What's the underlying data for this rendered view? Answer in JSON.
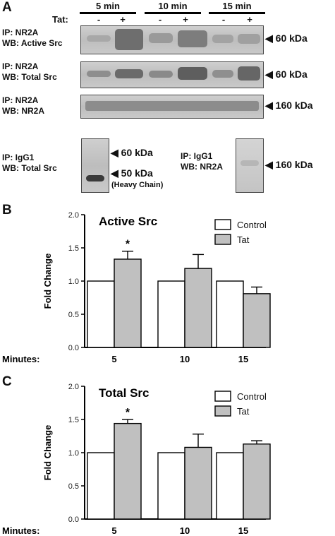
{
  "panel_labels": {
    "a": "A",
    "b": "B",
    "c": "C"
  },
  "blots": {
    "times": [
      "5 min",
      "10 min",
      "15 min"
    ],
    "treatment_label": "Tat:",
    "signs": [
      "-",
      "+",
      "-",
      "+",
      "-",
      "+"
    ],
    "rows": [
      {
        "ip": "IP: NR2A",
        "wb": "WB: Active Src",
        "marker": "60 kDa"
      },
      {
        "ip": "IP: NR2A",
        "wb": "WB: Total Src",
        "marker": "60 kDa"
      },
      {
        "ip": "IP: NR2A",
        "wb": "WB: NR2A",
        "marker": "160 kDa"
      }
    ],
    "igg_left": {
      "ip": "IP: IgG1",
      "wb": "WB: Total Src",
      "marker_top": "60 kDa",
      "marker_bottom": "50 kDa",
      "note": "(Heavy Chain)"
    },
    "igg_right": {
      "ip": "IP: IgG1",
      "wb": "WB: NR2A",
      "marker": "160 kDa"
    }
  },
  "chart_data": [
    {
      "type": "bar",
      "title": "Active Src",
      "xlabel": "Minutes:",
      "ylabel": "Fold Change",
      "categories": [
        "5",
        "10",
        "15"
      ],
      "ylim": [
        0,
        2.0
      ],
      "yticks": [
        "0.0",
        "0.5",
        "1.0",
        "1.5",
        "2.0"
      ],
      "series": [
        {
          "name": "Control",
          "values": [
            1.0,
            1.0,
            1.0
          ],
          "errors": [
            0,
            0,
            0
          ],
          "color": "#ffffff"
        },
        {
          "name": "Tat",
          "values": [
            1.33,
            1.19,
            0.81
          ],
          "errors": [
            0.12,
            0.21,
            0.1
          ],
          "color": "#c0c0c0"
        }
      ],
      "annotations": [
        {
          "category": "5",
          "text": "*"
        }
      ],
      "legend": "top-right"
    },
    {
      "type": "bar",
      "title": "Total Src",
      "xlabel": "Minutes:",
      "ylabel": "Fold Change",
      "categories": [
        "5",
        "10",
        "15"
      ],
      "ylim": [
        0,
        2.0
      ],
      "yticks": [
        "0.0",
        "0.5",
        "1.0",
        "1.5",
        "2.0"
      ],
      "series": [
        {
          "name": "Control",
          "values": [
            1.0,
            1.0,
            1.0
          ],
          "errors": [
            0,
            0,
            0
          ],
          "color": "#ffffff"
        },
        {
          "name": "Tat",
          "values": [
            1.44,
            1.08,
            1.13
          ],
          "errors": [
            0.06,
            0.2,
            0.05
          ],
          "color": "#c0c0c0"
        }
      ],
      "annotations": [
        {
          "category": "5",
          "text": "*"
        }
      ],
      "legend": "top-right"
    }
  ]
}
